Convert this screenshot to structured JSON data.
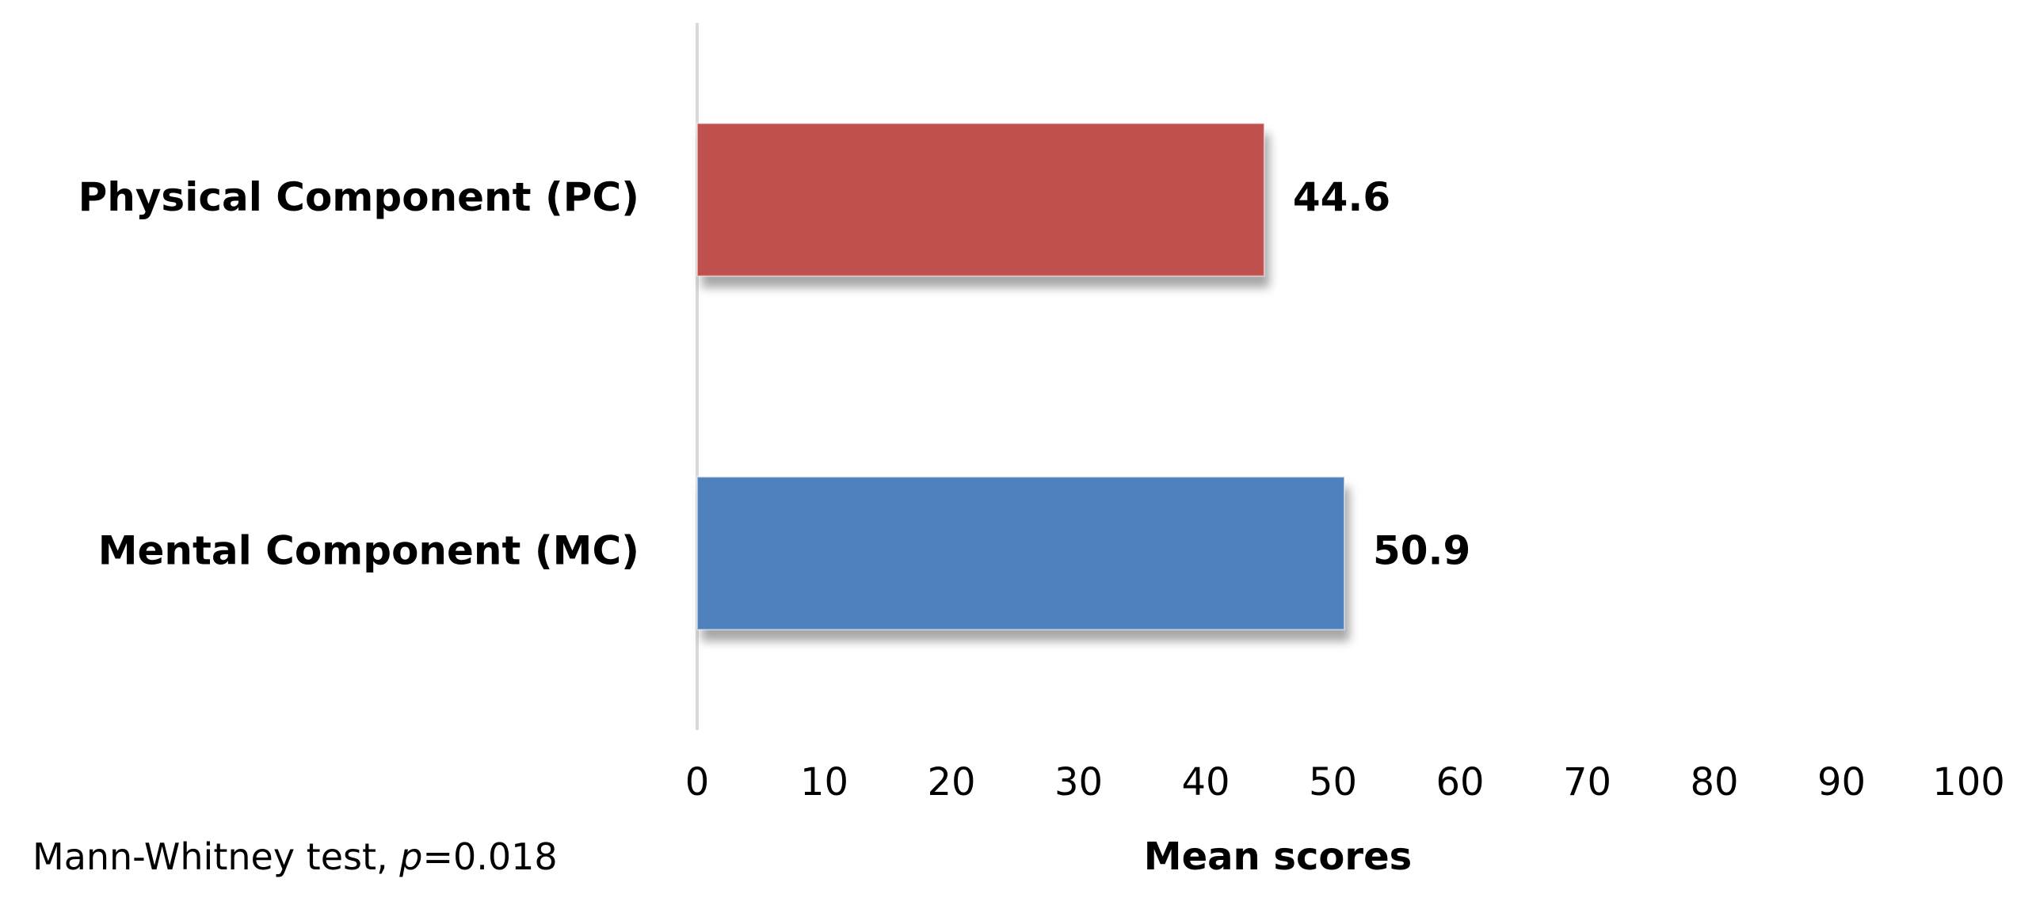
{
  "chart_data": {
    "type": "barh",
    "categories": [
      "Physical Component (PC)",
      "Mental Component (MC)"
    ],
    "values": [
      44.6,
      50.9
    ],
    "colors": [
      "#c0504d",
      "#4f81bd"
    ],
    "xlim": [
      0,
      100
    ],
    "xticks": [
      0,
      10,
      20,
      30,
      40,
      50,
      60,
      70,
      80,
      90,
      100
    ],
    "x_label": "Mean scores",
    "note": [
      "Mann-Whitney test, ",
      "p",
      "=0.018"
    ],
    "grid": false
  }
}
